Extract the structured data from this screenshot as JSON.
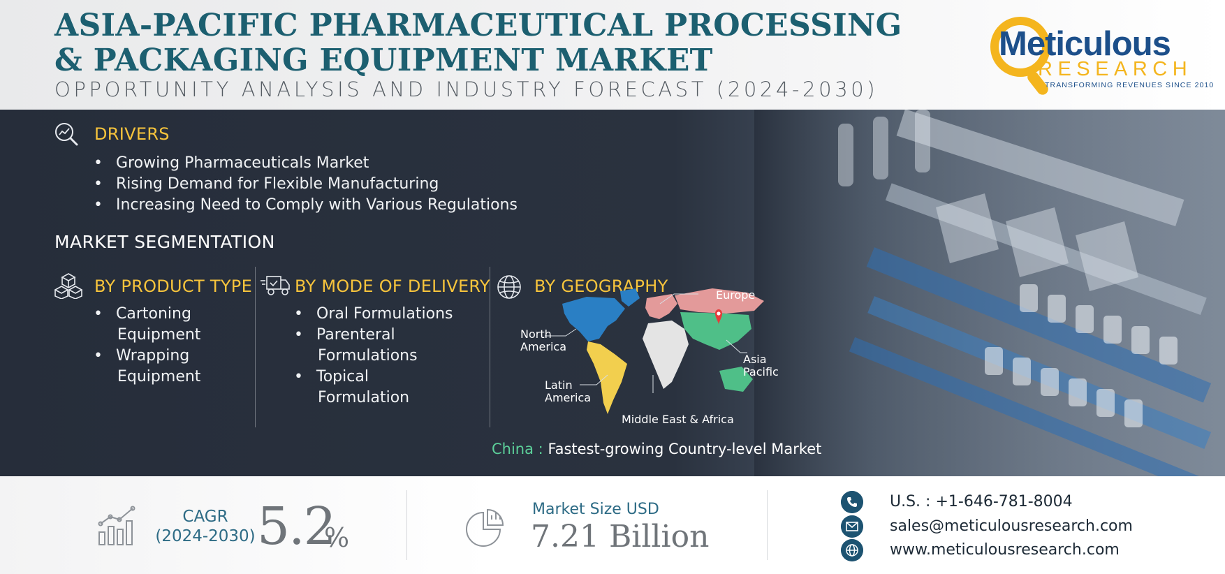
{
  "header": {
    "title_line1": "ASIA-PACIFIC PHARMACEUTICAL PROCESSING",
    "title_line2": "& PACKAGING EQUIPMENT MARKET",
    "subtitle": "OPPORTUNITY ANALYSIS AND INDUSTRY FORECAST (2024-2030)"
  },
  "logo": {
    "name": "Meticulous",
    "research": "RESEARCH",
    "tagline": "TRANSFORMING REVENUES SINCE 2010"
  },
  "drivers": {
    "heading": "DRIVERS",
    "icon": "magnifier-chart-icon",
    "items": [
      "Growing Pharmaceuticals Market",
      "Rising Demand for Flexible Manufacturing",
      "Increasing Need to Comply with Various Regulations"
    ]
  },
  "segmentation": {
    "heading": "MARKET SEGMENTATION",
    "product_type": {
      "heading": "BY PRODUCT TYPE",
      "icon": "boxes-icon",
      "items": [
        [
          "Cartoning",
          "Equipment"
        ],
        [
          "Wrapping",
          "Equipment"
        ]
      ]
    },
    "mode_of_delivery": {
      "heading": "BY MODE OF DELIVERY",
      "icon": "delivery-truck-icon",
      "items": [
        [
          "Oral Formulations"
        ],
        [
          "Parenteral",
          "Formulations"
        ],
        [
          "Topical",
          "Formulation"
        ]
      ]
    },
    "geography": {
      "heading": "BY GEOGRAPHY",
      "icon": "globe-icon",
      "regions": {
        "europe": "Europe",
        "north_america": [
          "North",
          "America"
        ],
        "asia_pacific": [
          "Asia",
          "Pacific"
        ],
        "latin_america": [
          "Latin",
          "America"
        ],
        "mea": "Middle East & Africa"
      },
      "colors": {
        "north_america": "#2a7fc4",
        "europe": "#e39a9a",
        "asia_pacific": "#4fbf88",
        "latin_america": "#f2cf4e",
        "mea": "#e4e4e4",
        "pin": "#e63b3b"
      }
    }
  },
  "china_note": {
    "key": "China :",
    "text": "Fastest-growing Country-level Market"
  },
  "footer": {
    "cagr_label_1": "CAGR",
    "cagr_label_2": "(2024-2030)",
    "cagr_value": "5.2",
    "cagr_unit": "%",
    "market_size_label": "Market Size USD",
    "market_size_value": "7.21 Billion",
    "contacts": {
      "phone": "U.S. : +1-646-781-8004",
      "email": "sales@meticulousresearch.com",
      "web": "www.meticulousresearch.com"
    }
  },
  "colors": {
    "title": "#1c5f70",
    "accent_yellow": "#f7c43c",
    "panel_dark": "#262d3a",
    "footer_blue": "#2d6b85",
    "contact_icon": "#1d5371"
  }
}
